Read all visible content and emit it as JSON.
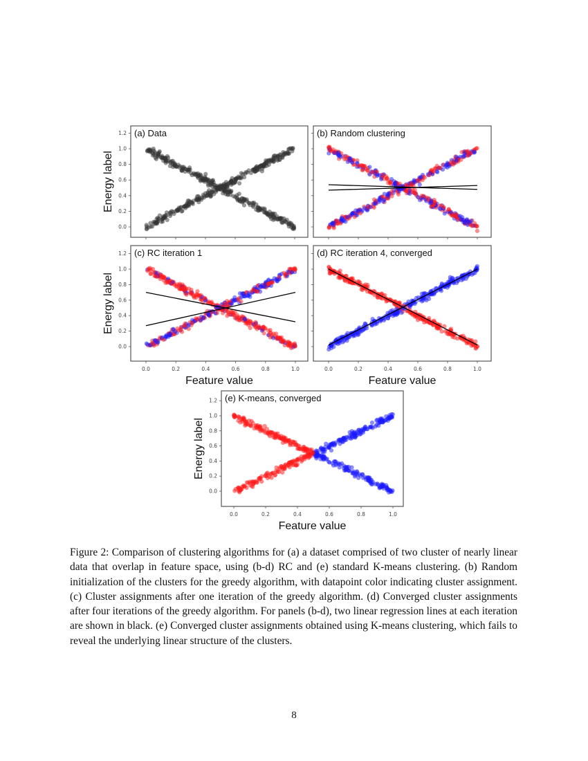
{
  "figure": {
    "ylabel": "Energy label",
    "xlabel": "Feature value",
    "colors": {
      "data": "#333333",
      "cluster_1": "#ff1a1a",
      "cluster_2": "#1a1aff",
      "regression_line": "#000000"
    }
  },
  "chart_data": [
    {
      "type": "scatter",
      "title": "(a) Data",
      "xlim": [
        0,
        1
      ],
      "ylim": [
        -0.15,
        1.25
      ],
      "yticks": [
        "0.0",
        "0.2",
        "0.4",
        "0.6",
        "0.8",
        "1.0",
        "1.2"
      ],
      "xticks": [],
      "clusters": [
        {
          "trend": "increasing",
          "from": [
            0.0,
            0.0
          ],
          "to": [
            1.0,
            1.0
          ]
        },
        {
          "trend": "decreasing",
          "from": [
            0.0,
            1.0
          ],
          "to": [
            1.0,
            0.0
          ]
        }
      ],
      "point_colors": "black",
      "regression_lines": []
    },
    {
      "type": "scatter",
      "title": "(b) Random clustering",
      "xlim": [
        0,
        1
      ],
      "ylim": [
        -0.15,
        1.25
      ],
      "yticks": [],
      "xticks": [],
      "point_colors": "red/blue random",
      "regression_lines": [
        {
          "from": [
            0.0,
            0.54
          ],
          "to": [
            1.0,
            0.48
          ]
        },
        {
          "from": [
            0.0,
            0.47
          ],
          "to": [
            1.0,
            0.53
          ]
        }
      ]
    },
    {
      "type": "scatter",
      "title": "(c) RC iteration 1",
      "xlim": [
        0,
        1
      ],
      "ylim": [
        -0.15,
        1.25
      ],
      "yticks": [
        "0.0",
        "0.2",
        "0.4",
        "0.6",
        "0.8",
        "1.0",
        "1.2"
      ],
      "xticks": [
        "0.0",
        "0.2",
        "0.4",
        "0.6",
        "0.8",
        "1.0"
      ],
      "point_colors": "mostly red, mixed blue",
      "regression_lines": [
        {
          "from": [
            0.0,
            0.7
          ],
          "to": [
            1.0,
            0.32
          ]
        },
        {
          "from": [
            0.0,
            0.27
          ],
          "to": [
            1.0,
            0.7
          ]
        }
      ]
    },
    {
      "type": "scatter",
      "title": "(d) RC iteration 4, converged",
      "xlim": [
        0,
        1
      ],
      "ylim": [
        -0.15,
        1.25
      ],
      "yticks": [],
      "xticks": [
        "0.0",
        "0.2",
        "0.4",
        "0.6",
        "0.8",
        "1.0"
      ],
      "point_colors": "decreasing red, increasing blue",
      "regression_lines": [
        {
          "from": [
            0.0,
            1.0
          ],
          "to": [
            1.0,
            0.02
          ]
        },
        {
          "from": [
            0.0,
            0.02
          ],
          "to": [
            1.0,
            1.0
          ]
        }
      ]
    },
    {
      "type": "scatter",
      "title": "(e) K-means, converged",
      "xlim": [
        0,
        1
      ],
      "ylim": [
        -0.15,
        1.25
      ],
      "yticks": [
        "0.0",
        "0.2",
        "0.4",
        "0.6",
        "0.8",
        "1.0",
        "1.2"
      ],
      "xticks": [
        "0.0",
        "0.2",
        "0.4",
        "0.6",
        "0.8",
        "1.0"
      ],
      "point_colors": "x<0.5 red, x>0.5 blue",
      "regression_lines": []
    }
  ],
  "caption": "Figure 2: Comparison of clustering algorithms for (a) a dataset comprised of two cluster of nearly linear data that overlap in feature space, using (b-d) RC and (e) standard K-means clustering. (b) Random initialization of the clusters for the greedy algorithm, with datapoint color indicating cluster assignment. (c) Cluster assignments after one iteration of the greedy algorithm. (d) Converged cluster assignments after four iterations of the greedy algorithm. For panels (b-d), two linear regression lines at each iteration are shown in black. (e) Converged cluster assignments obtained using K-means clustering, which fails to reveal the underlying linear structure of the clusters.",
  "page_number": "8"
}
